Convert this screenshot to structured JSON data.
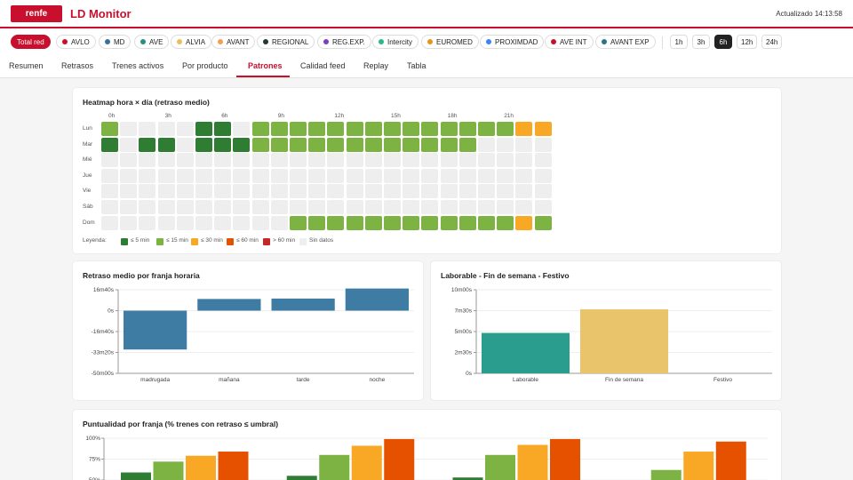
{
  "header": {
    "logo": "renfe",
    "title": "LD Monitor",
    "updated": "Actualizado 14:13:58"
  },
  "filters": {
    "products": [
      {
        "label": "Total red",
        "color": "",
        "active": true
      },
      {
        "label": "AVLO",
        "color": "#c8102e"
      },
      {
        "label": "MD",
        "color": "#3b6e99"
      },
      {
        "label": "AVE",
        "color": "#2a8f82"
      },
      {
        "label": "ALVIA",
        "color": "#e8c05a"
      },
      {
        "label": "AVANT",
        "color": "#f0a050"
      },
      {
        "label": "REGIONAL",
        "color": "#1f3b33"
      },
      {
        "label": "REG.EXP.",
        "color": "#7b3fc0"
      },
      {
        "label": "Intercity",
        "color": "#28b88c"
      },
      {
        "label": "EUROMED",
        "color": "#e8941a"
      },
      {
        "label": "PROXIMDAD",
        "color": "#3b82f6"
      },
      {
        "label": "AVE INT",
        "color": "#c8102e"
      },
      {
        "label": "AVANT EXP",
        "color": "#2e7288"
      }
    ],
    "windows": [
      {
        "label": "1h"
      },
      {
        "label": "3h"
      },
      {
        "label": "6h",
        "active": true
      },
      {
        "label": "12h"
      },
      {
        "label": "24h"
      }
    ]
  },
  "tabs": [
    {
      "label": "Resumen"
    },
    {
      "label": "Retrasos"
    },
    {
      "label": "Trenes activos"
    },
    {
      "label": "Por producto"
    },
    {
      "label": "Patrones",
      "active": true
    },
    {
      "label": "Calidad feed"
    },
    {
      "label": "Replay"
    },
    {
      "label": "Tabla"
    }
  ],
  "colors": {
    "accent": "#c8102e",
    "l0": "#2e7d32",
    "l1": "#7cb342",
    "l2": "#f9a825",
    "l3": "#e65100",
    "l4": "#c62828",
    "nodata": "#eeeeee"
  },
  "heatmap": {
    "title": "Heatmap hora × día (retraso medio)",
    "hour_labels": [
      {
        "label": "0h",
        "hour": 0
      },
      {
        "label": "3h",
        "hour": 3
      },
      {
        "label": "6h",
        "hour": 6
      },
      {
        "label": "9h",
        "hour": 9
      },
      {
        "label": "12h",
        "hour": 12
      },
      {
        "label": "15h",
        "hour": 15
      },
      {
        "label": "18h",
        "hour": 18
      },
      {
        "label": "21h",
        "hour": 21
      }
    ],
    "days": [
      "Lun",
      "Mar",
      "Mié",
      "Jue",
      "Vie",
      "Sáb",
      "Dom"
    ],
    "levels": [
      [
        1,
        -1,
        -1,
        -1,
        -1,
        0,
        0,
        -1,
        1,
        1,
        1,
        1,
        1,
        1,
        1,
        1,
        1,
        1,
        1,
        1,
        1,
        1,
        2,
        2
      ],
      [
        0,
        -1,
        0,
        0,
        -1,
        0,
        0,
        0,
        1,
        1,
        1,
        1,
        1,
        1,
        1,
        1,
        1,
        1,
        1,
        1,
        -1,
        -1,
        -1,
        -1
      ],
      [
        -1,
        -1,
        -1,
        -1,
        -1,
        -1,
        -1,
        -1,
        -1,
        -1,
        -1,
        -1,
        -1,
        -1,
        -1,
        -1,
        -1,
        -1,
        -1,
        -1,
        -1,
        -1,
        -1,
        -1
      ],
      [
        -1,
        -1,
        -1,
        -1,
        -1,
        -1,
        -1,
        -1,
        -1,
        -1,
        -1,
        -1,
        -1,
        -1,
        -1,
        -1,
        -1,
        -1,
        -1,
        -1,
        -1,
        -1,
        -1,
        -1
      ],
      [
        -1,
        -1,
        -1,
        -1,
        -1,
        -1,
        -1,
        -1,
        -1,
        -1,
        -1,
        -1,
        -1,
        -1,
        -1,
        -1,
        -1,
        -1,
        -1,
        -1,
        -1,
        -1,
        -1,
        -1
      ],
      [
        -1,
        -1,
        -1,
        -1,
        -1,
        -1,
        -1,
        -1,
        -1,
        -1,
        -1,
        -1,
        -1,
        -1,
        -1,
        -1,
        -1,
        -1,
        -1,
        -1,
        -1,
        -1,
        -1,
        -1
      ],
      [
        -1,
        -1,
        -1,
        -1,
        -1,
        -1,
        -1,
        -1,
        -1,
        -1,
        1,
        1,
        1,
        1,
        1,
        1,
        1,
        1,
        1,
        1,
        1,
        1,
        2,
        1
      ]
    ],
    "legend": {
      "prefix": "Leyenda:",
      "items": [
        {
          "label": "≤ 5 min",
          "color": "#2e7d32"
        },
        {
          "label": "≤ 15 min",
          "color": "#7cb342"
        },
        {
          "label": "≤ 30 min",
          "color": "#f9a825"
        },
        {
          "label": "≤ 60 min",
          "color": "#e65100"
        },
        {
          "label": "> 60 min",
          "color": "#c62828"
        },
        {
          "label": "Sin datos",
          "color": "#eeeeee"
        }
      ]
    }
  },
  "chart_data": [
    {
      "type": "bar",
      "title": "Retraso medio por franja horaria",
      "categories": [
        "madrugada",
        "mañana",
        "tarde",
        "noche"
      ],
      "values": [
        -1860,
        560,
        580,
        1060
      ],
      "value_unit": "seconds",
      "y_tick_labels": [
        "16m40s",
        "0s",
        "-16m40s",
        "-33m20s",
        "-50m00s"
      ],
      "y_ticks": [
        1000,
        0,
        -1000,
        -2000,
        -3000
      ],
      "ylim": [
        -3000,
        1000
      ],
      "color": "#3f7ca3",
      "grid": true
    },
    {
      "type": "bar",
      "title": "Laborable - Fin de semana - Festivo",
      "categories": [
        "Laborable",
        "Fin de semana",
        "Festivo"
      ],
      "values": [
        290,
        460,
        0
      ],
      "value_unit": "seconds",
      "y_tick_labels": [
        "10m00s",
        "7m30s",
        "5m00s",
        "2m30s",
        "0s"
      ],
      "y_ticks": [
        600,
        450,
        300,
        150,
        0
      ],
      "ylim": [
        0,
        600
      ],
      "colors": [
        "#2a9d8f",
        "#e9c46a",
        "#cccccc"
      ],
      "grid": true
    },
    {
      "type": "bar",
      "title": "Puntualidad por franja (% trenes con retraso ≤ umbral)",
      "y_tick_labels": [
        "100%",
        "75%",
        "50%"
      ],
      "y_ticks": [
        100,
        75,
        50
      ],
      "ylim": [
        0,
        100
      ],
      "groups": 4,
      "series": [
        {
          "color": "#2e7d32",
          "values": [
            59,
            55,
            53,
            null
          ]
        },
        {
          "color": "#7cb342",
          "values": [
            72,
            80,
            80,
            62
          ]
        },
        {
          "color": "#f9a825",
          "values": [
            79,
            91,
            92,
            84
          ]
        },
        {
          "color": "#e65100",
          "values": [
            84,
            99,
            99,
            96
          ]
        }
      ]
    }
  ]
}
